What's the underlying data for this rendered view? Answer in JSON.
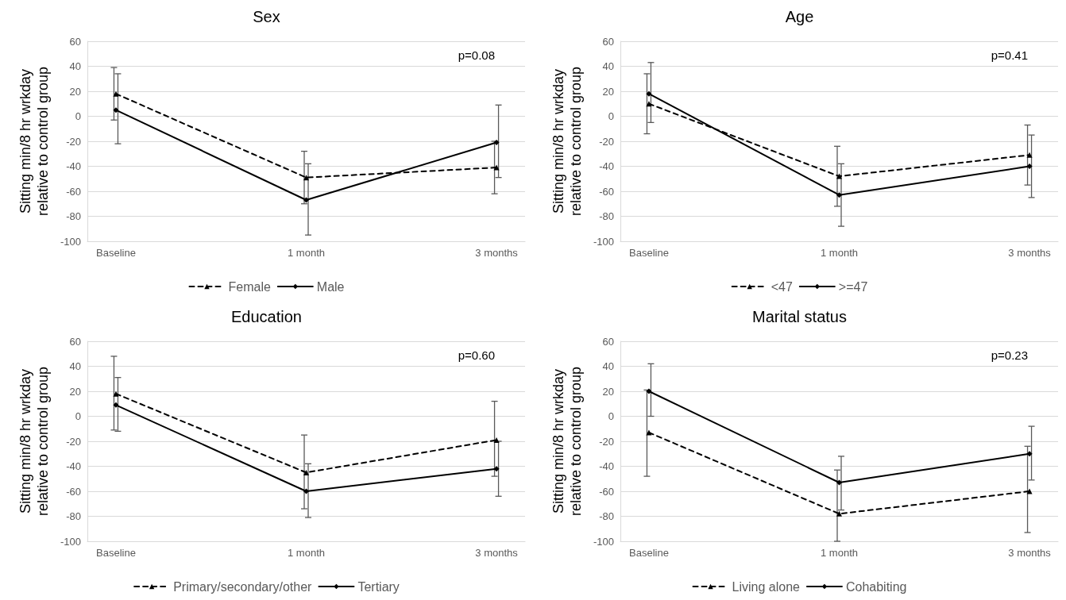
{
  "chart_data": [
    {
      "type": "line",
      "title": "Sex",
      "ylabel": "Sitting min/8 hr wrkday relative to control group",
      "categories": [
        "Baseline",
        "1 month",
        "3 months"
      ],
      "ylim": [
        -100,
        60
      ],
      "yticks": [
        -100,
        -80,
        -60,
        -40,
        -20,
        0,
        20,
        40,
        60
      ],
      "grid": "y",
      "legend": "bottom",
      "annotations": [
        "p=0.08"
      ],
      "series": [
        {
          "name": "Female",
          "color": "#000000",
          "marker": "triangle",
          "line_style": "dashed",
          "values": [
            18,
            -49,
            -41
          ],
          "errors": [
            [
              -3,
              39
            ],
            [
              -70,
              -28
            ],
            [
              -62,
              -20
            ]
          ]
        },
        {
          "name": "Male",
          "color": "#000000",
          "marker": "diamond",
          "line_style": "solid",
          "values": [
            5,
            -67,
            -21
          ],
          "errors": [
            [
              -22,
              34
            ],
            [
              -95,
              -38
            ],
            [
              -49,
              9
            ]
          ]
        }
      ]
    },
    {
      "type": "line",
      "title": "Age",
      "ylabel": "Sitting min/8 hr wrkday relative to control group",
      "categories": [
        "Baseline",
        "1 month",
        "3 months"
      ],
      "ylim": [
        -100,
        60
      ],
      "yticks": [
        -100,
        -80,
        -60,
        -40,
        -20,
        0,
        20,
        40,
        60
      ],
      "grid": "y",
      "legend": "bottom",
      "annotations": [
        "p=0.41"
      ],
      "series": [
        {
          "name": "<47",
          "color": "#000000",
          "marker": "triangle",
          "line_style": "dashed",
          "values": [
            10,
            -48,
            -31
          ],
          "errors": [
            [
              -14,
              34
            ],
            [
              -72,
              -24
            ],
            [
              -55,
              -7
            ]
          ]
        },
        {
          "name": ">=47",
          "color": "#000000",
          "marker": "diamond",
          "line_style": "solid",
          "values": [
            18,
            -63,
            -40
          ],
          "errors": [
            [
              -5,
              43
            ],
            [
              -88,
              -38
            ],
            [
              -65,
              -15
            ]
          ]
        }
      ]
    },
    {
      "type": "line",
      "title": "Education",
      "ylabel": "Sitting min/8 hr wrkday relative to control group",
      "categories": [
        "Baseline",
        "1 month",
        "3 months"
      ],
      "ylim": [
        -100,
        60
      ],
      "yticks": [
        -100,
        -80,
        -60,
        -40,
        -20,
        0,
        20,
        40,
        60
      ],
      "grid": "y",
      "legend": "bottom",
      "annotations": [
        "p=0.60"
      ],
      "series": [
        {
          "name": "Primary/secondary/other",
          "color": "#000000",
          "marker": "triangle",
          "line_style": "dashed",
          "values": [
            18,
            -45,
            -19
          ],
          "errors": [
            [
              -11,
              48
            ],
            [
              -74,
              -15
            ],
            [
              -48,
              12
            ]
          ]
        },
        {
          "name": "Tertiary",
          "color": "#000000",
          "marker": "diamond",
          "line_style": "solid",
          "values": [
            9,
            -60,
            -42
          ],
          "errors": [
            [
              -12,
              31
            ],
            [
              -81,
              -38
            ],
            [
              -64,
              -20
            ]
          ]
        }
      ]
    },
    {
      "type": "line",
      "title": "Marital status",
      "ylabel": "Sitting min/8 hr wrkday relative to control group",
      "categories": [
        "Baseline",
        "1 month",
        "3 months"
      ],
      "ylim": [
        -100,
        60
      ],
      "yticks": [
        -100,
        -80,
        -60,
        -40,
        -20,
        0,
        20,
        40,
        60
      ],
      "grid": "y",
      "legend": "bottom",
      "annotations": [
        "p=0.23"
      ],
      "series": [
        {
          "name": "Living alone",
          "color": "#000000",
          "marker": "triangle",
          "line_style": "dashed",
          "values": [
            -13,
            -78,
            -60
          ],
          "errors": [
            [
              -48,
              21
            ],
            [
              -100,
              -43
            ],
            [
              -93,
              -24
            ]
          ]
        },
        {
          "name": "Cohabiting",
          "color": "#000000",
          "marker": "diamond",
          "line_style": "solid",
          "values": [
            20,
            -53,
            -30
          ],
          "errors": [
            [
              0,
              42
            ],
            [
              -75,
              -32
            ],
            [
              -51,
              -8
            ]
          ]
        }
      ]
    }
  ]
}
